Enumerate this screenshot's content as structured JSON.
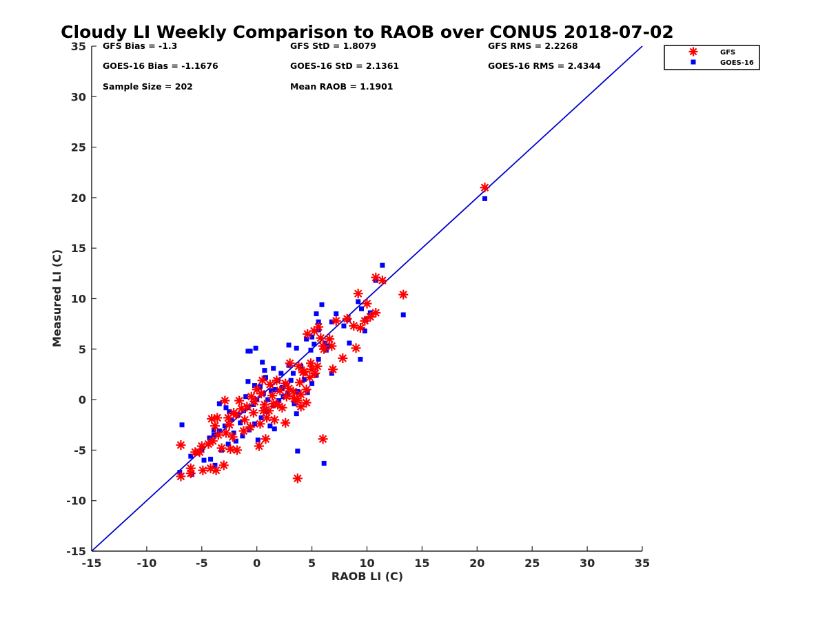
{
  "chart_data": {
    "type": "scatter",
    "title": "Cloudy LI Weekly Comparison to RAOB over CONUS 2018-07-02",
    "xlabel": "RAOB LI (C)",
    "ylabel": "Measured LI (C)",
    "xlim": [
      -15,
      35
    ],
    "ylim": [
      -15,
      35
    ],
    "xticks": [
      -15,
      -10,
      -5,
      0,
      5,
      10,
      15,
      20,
      25,
      30,
      35
    ],
    "yticks": [
      -15,
      -10,
      -5,
      0,
      5,
      10,
      15,
      20,
      25,
      30,
      35
    ],
    "reference_line": {
      "name": "1:1 line",
      "from": [
        -15,
        -15
      ],
      "to": [
        35,
        35
      ],
      "color": "#0000cc"
    },
    "legend": {
      "position": "top-right-outside",
      "entries": [
        "GFS",
        "GOES-16"
      ]
    },
    "stats": {
      "gfs_bias": "GFS Bias = -1.3",
      "gfs_std": "GFS StD = 1.8079",
      "gfs_rms": "GFS RMS = 2.2268",
      "goes_bias": "GOES-16 Bias = -1.1676",
      "goes_std": "GOES-16 StD = 2.1361",
      "goes_rms": "GOES-16 RMS = 2.4344",
      "sample_size": "Sample Size = 202",
      "mean_raob": "Mean RAOB = 1.1901"
    },
    "series": [
      {
        "name": "GFS",
        "marker": "asterisk",
        "color": "#ff0000",
        "points": [
          [
            20.7,
            21.0
          ],
          [
            10.8,
            12.1
          ],
          [
            11.4,
            11.8
          ],
          [
            13.3,
            10.4
          ],
          [
            9.2,
            10.5
          ],
          [
            10.0,
            9.5
          ],
          [
            10.8,
            8.6
          ],
          [
            10.3,
            8.2
          ],
          [
            9.8,
            7.8
          ],
          [
            9.4,
            7.1
          ],
          [
            8.2,
            8.0
          ],
          [
            8.8,
            7.3
          ],
          [
            7.8,
            4.1
          ],
          [
            9.0,
            5.1
          ],
          [
            7.2,
            7.8
          ],
          [
            6.8,
            5.3
          ],
          [
            6.6,
            6.0
          ],
          [
            6.0,
            5.3
          ],
          [
            5.6,
            7.2
          ],
          [
            5.2,
            6.8
          ],
          [
            4.6,
            6.5
          ],
          [
            5.8,
            6.1
          ],
          [
            6.1,
            5.0
          ],
          [
            6.9,
            3.0
          ],
          [
            5.5,
            3.3
          ],
          [
            5.0,
            3.0
          ],
          [
            4.8,
            2.2
          ],
          [
            4.2,
            2.7
          ],
          [
            3.8,
            3.3
          ],
          [
            3.0,
            3.6
          ],
          [
            2.6,
            1.6
          ],
          [
            4.5,
            1.0
          ],
          [
            4.0,
            0.5
          ],
          [
            4.5,
            -0.3
          ],
          [
            4.0,
            -0.7
          ],
          [
            3.7,
            -0.1
          ],
          [
            3.3,
            0.8
          ],
          [
            2.9,
            1.1
          ],
          [
            2.6,
            -2.3
          ],
          [
            1.6,
            -2.0
          ],
          [
            1.1,
            -1.1
          ],
          [
            0.7,
            -0.5
          ],
          [
            0.4,
            0.6
          ],
          [
            0.0,
            1.0
          ],
          [
            -0.5,
            0.3
          ],
          [
            0.5,
            1.9
          ],
          [
            1.8,
            1.9
          ],
          [
            0.8,
            -3.9
          ],
          [
            0.2,
            -4.6
          ],
          [
            -0.6,
            -2.7
          ],
          [
            -1.1,
            -2.0
          ],
          [
            -1.9,
            -1.5
          ],
          [
            -2.5,
            -2.5
          ],
          [
            -2.8,
            -3.3
          ],
          [
            -1.6,
            -0.1
          ],
          [
            -2.9,
            -0.1
          ],
          [
            -3.6,
            -1.8
          ],
          [
            -4.1,
            -1.9
          ],
          [
            -3.8,
            -2.6
          ],
          [
            -3.5,
            -3.5
          ],
          [
            -4.0,
            -4.1
          ],
          [
            -4.4,
            -4.4
          ],
          [
            -3.2,
            -4.8
          ],
          [
            -2.4,
            -4.9
          ],
          [
            -1.8,
            -5.0
          ],
          [
            -3.0,
            -6.5
          ],
          [
            -3.7,
            -7.0
          ],
          [
            -4.2,
            -6.8
          ],
          [
            -4.9,
            -7.0
          ],
          [
            -5.2,
            -5.2
          ],
          [
            -5.6,
            -5.2
          ],
          [
            -6.0,
            -7.3
          ],
          [
            -6.0,
            -6.8
          ],
          [
            -6.9,
            -7.6
          ],
          [
            -6.9,
            -4.5
          ],
          [
            -5.0,
            -4.6
          ],
          [
            6.0,
            -3.9
          ],
          [
            3.7,
            -7.8
          ],
          [
            2.3,
            -0.8
          ],
          [
            1.9,
            -0.5
          ],
          [
            1.4,
            0.4
          ],
          [
            1.2,
            1.5
          ],
          [
            0.9,
            -1.8
          ],
          [
            0.3,
            -2.4
          ],
          [
            -0.3,
            -1.3
          ],
          [
            -0.9,
            -0.7
          ],
          [
            -1.4,
            -0.9
          ],
          [
            -2.1,
            -1.3
          ],
          [
            -2.6,
            -1.8
          ],
          [
            2.1,
            0.9
          ],
          [
            2.7,
            0.3
          ],
          [
            3.4,
            0.1
          ],
          [
            3.9,
            1.7
          ],
          [
            4.3,
            2.8
          ],
          [
            4.9,
            3.6
          ],
          [
            5.3,
            2.6
          ],
          [
            1.5,
            -0.4
          ],
          [
            -0.2,
            -0.2
          ],
          [
            0.6,
            -1.1
          ],
          [
            -1.2,
            -3.1
          ],
          [
            -2.2,
            -3.7
          ]
        ]
      },
      {
        "name": "GOES-16",
        "marker": "square",
        "color": "#0000ff",
        "points": [
          [
            20.7,
            19.9
          ],
          [
            11.4,
            13.3
          ],
          [
            10.8,
            11.8
          ],
          [
            13.3,
            8.4
          ],
          [
            9.2,
            9.7
          ],
          [
            9.5,
            9.0
          ],
          [
            10.3,
            8.6
          ],
          [
            9.9,
            7.9
          ],
          [
            9.8,
            6.8
          ],
          [
            9.4,
            4.0
          ],
          [
            8.3,
            7.9
          ],
          [
            8.4,
            5.6
          ],
          [
            7.9,
            7.3
          ],
          [
            7.2,
            8.5
          ],
          [
            6.8,
            7.7
          ],
          [
            5.9,
            9.4
          ],
          [
            5.4,
            8.5
          ],
          [
            5.6,
            7.7
          ],
          [
            5.0,
            6.2
          ],
          [
            4.5,
            6.0
          ],
          [
            5.2,
            5.5
          ],
          [
            6.2,
            5.6
          ],
          [
            6.5,
            5.3
          ],
          [
            5.6,
            4.0
          ],
          [
            5.4,
            2.4
          ],
          [
            6.8,
            2.6
          ],
          [
            4.9,
            4.9
          ],
          [
            3.6,
            5.1
          ],
          [
            2.9,
            5.4
          ],
          [
            0.5,
            3.7
          ],
          [
            -0.8,
            4.8
          ],
          [
            -0.6,
            4.8
          ],
          [
            -0.1,
            5.1
          ],
          [
            0.7,
            2.9
          ],
          [
            1.5,
            3.1
          ],
          [
            2.2,
            2.6
          ],
          [
            2.9,
            3.4
          ],
          [
            3.3,
            2.6
          ],
          [
            4.0,
            3.3
          ],
          [
            4.3,
            2.0
          ],
          [
            5.0,
            1.6
          ],
          [
            3.7,
            0.8
          ],
          [
            3.6,
            -1.4
          ],
          [
            3.4,
            -0.4
          ],
          [
            2.8,
            0.6
          ],
          [
            2.3,
            1.2
          ],
          [
            1.9,
            1.9
          ],
          [
            1.3,
            0.9
          ],
          [
            1.0,
            0.0
          ],
          [
            0.6,
            0.6
          ],
          [
            0.3,
            1.3
          ],
          [
            -0.2,
            1.4
          ],
          [
            -0.8,
            1.8
          ],
          [
            0.0,
            0.0
          ],
          [
            -0.3,
            -0.5
          ],
          [
            -0.8,
            -0.8
          ],
          [
            -1.2,
            -1.1
          ],
          [
            -1.7,
            -1.5
          ],
          [
            -2.3,
            -2.0
          ],
          [
            -2.9,
            -2.6
          ],
          [
            -3.4,
            -3.1
          ],
          [
            -3.9,
            -3.5
          ],
          [
            -2.8,
            -0.8
          ],
          [
            -3.4,
            -0.4
          ],
          [
            -3.9,
            -3.0
          ],
          [
            -4.3,
            -3.8
          ],
          [
            -5.0,
            -4.9
          ],
          [
            -5.5,
            -5.3
          ],
          [
            -6.0,
            -5.6
          ],
          [
            -6.8,
            -2.5
          ],
          [
            -4.8,
            -6.0
          ],
          [
            -3.8,
            -6.5
          ],
          [
            -4.2,
            -5.9
          ],
          [
            -5.9,
            -7.4
          ],
          [
            -7.0,
            -7.2
          ],
          [
            -3.2,
            -5.0
          ],
          [
            -2.6,
            -4.4
          ],
          [
            -1.9,
            -4.1
          ],
          [
            -1.3,
            -3.6
          ],
          [
            -0.7,
            -3.0
          ],
          [
            -0.2,
            -2.4
          ],
          [
            0.4,
            -1.8
          ],
          [
            0.9,
            -1.2
          ],
          [
            1.5,
            -0.6
          ],
          [
            2.0,
            -0.1
          ],
          [
            2.4,
            0.3
          ],
          [
            1.2,
            -2.6
          ],
          [
            0.1,
            -4.0
          ],
          [
            1.6,
            -2.9
          ],
          [
            6.1,
            -6.3
          ],
          [
            3.7,
            -5.1
          ],
          [
            -1.5,
            -2.3
          ],
          [
            -2.1,
            -3.3
          ],
          [
            -2.5,
            -1.2
          ],
          [
            -1.0,
            0.3
          ],
          [
            0.8,
            2.2
          ],
          [
            1.7,
            1.0
          ],
          [
            2.6,
            1.5
          ],
          [
            3.1,
            1.9
          ],
          [
            4.6,
            0.7
          ],
          [
            5.6,
            6.9
          ],
          [
            6.3,
            4.9
          ]
        ]
      }
    ]
  }
}
